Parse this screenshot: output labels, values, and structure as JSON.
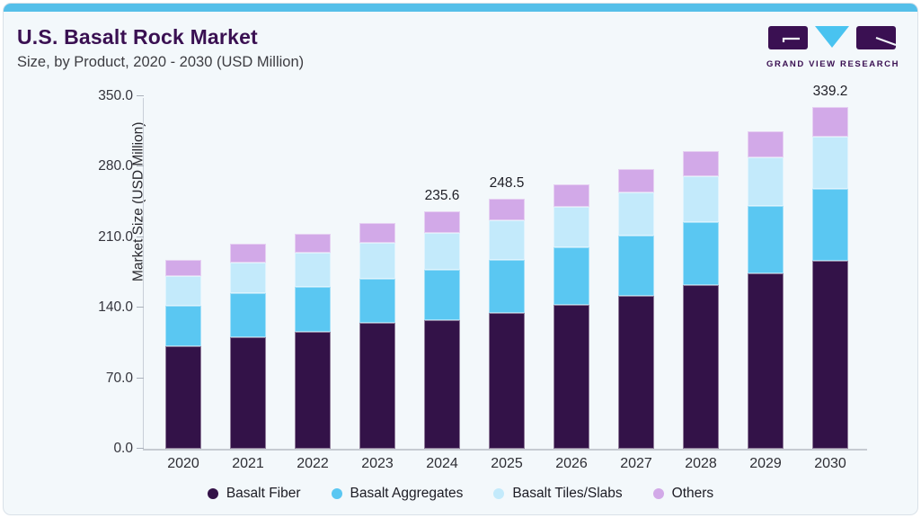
{
  "header": {
    "title": "U.S. Basalt Rock Market",
    "subtitle": "Size, by Product, 2020 - 2030 (USD Million)"
  },
  "logo": {
    "text": "GRAND VIEW RESEARCH"
  },
  "colors": {
    "accent_strip": "#55bfe9",
    "card_background": "#f3f8fb",
    "title": "#3a1052",
    "logo_purple": "#3a1052",
    "logo_cyan": "#49c3f0",
    "basalt_fiber": "#331248",
    "basalt_aggregates": "#5ac7f2",
    "basalt_tiles_slabs": "#c3eafb",
    "others": "#d2a9e8"
  },
  "chart_data": {
    "type": "bar",
    "stacked": true,
    "title": "U.S. Basalt Rock Market Size, by Product, 2020 - 2030 (USD Million)",
    "xlabel": "",
    "ylabel": "Market Size (USD Million)",
    "ylim": [
      0,
      350
    ],
    "yticks": [
      0.0,
      70.0,
      140.0,
      210.0,
      280.0,
      350.0
    ],
    "grid": false,
    "legend_position": "bottom",
    "categories": [
      "2020",
      "2021",
      "2022",
      "2023",
      "2024",
      "2025",
      "2026",
      "2027",
      "2028",
      "2029",
      "2030"
    ],
    "series": [
      {
        "name": "Basalt Fiber",
        "color": "#331248",
        "values": [
          101.4,
          110.4,
          116.3,
          125.3,
          127.7,
          134.9,
          143.2,
          152.1,
          162.6,
          174.5,
          186.4
        ]
      },
      {
        "name": "Basalt Aggregates",
        "color": "#5ac7f2",
        "values": [
          40.3,
          43.8,
          44.8,
          43.8,
          49.8,
          52.4,
          56.6,
          59.1,
          62.6,
          66.5,
          71.6
        ]
      },
      {
        "name": "Basalt Tiles/Slabs",
        "color": "#c3eafb",
        "values": [
          29.8,
          30.8,
          34.0,
          35.2,
          37.0,
          39.4,
          40.3,
          43.2,
          45.3,
          48.3,
          52.2
        ]
      },
      {
        "name": "Others",
        "color": "#d2a9e8",
        "values": [
          16.4,
          18.8,
          17.9,
          19.4,
          21.1,
          21.8,
          22.1,
          23.7,
          25.4,
          26.3,
          29.0
        ]
      }
    ],
    "totals": [
      187.9,
      203.8,
      213.0,
      223.7,
      235.6,
      248.5,
      262.2,
      278.1,
      295.9,
      315.6,
      339.2
    ],
    "value_labels": [
      {
        "category": "2024",
        "text": "235.6"
      },
      {
        "category": "2025",
        "text": "248.5"
      },
      {
        "category": "2030",
        "text": "339.2"
      }
    ]
  }
}
